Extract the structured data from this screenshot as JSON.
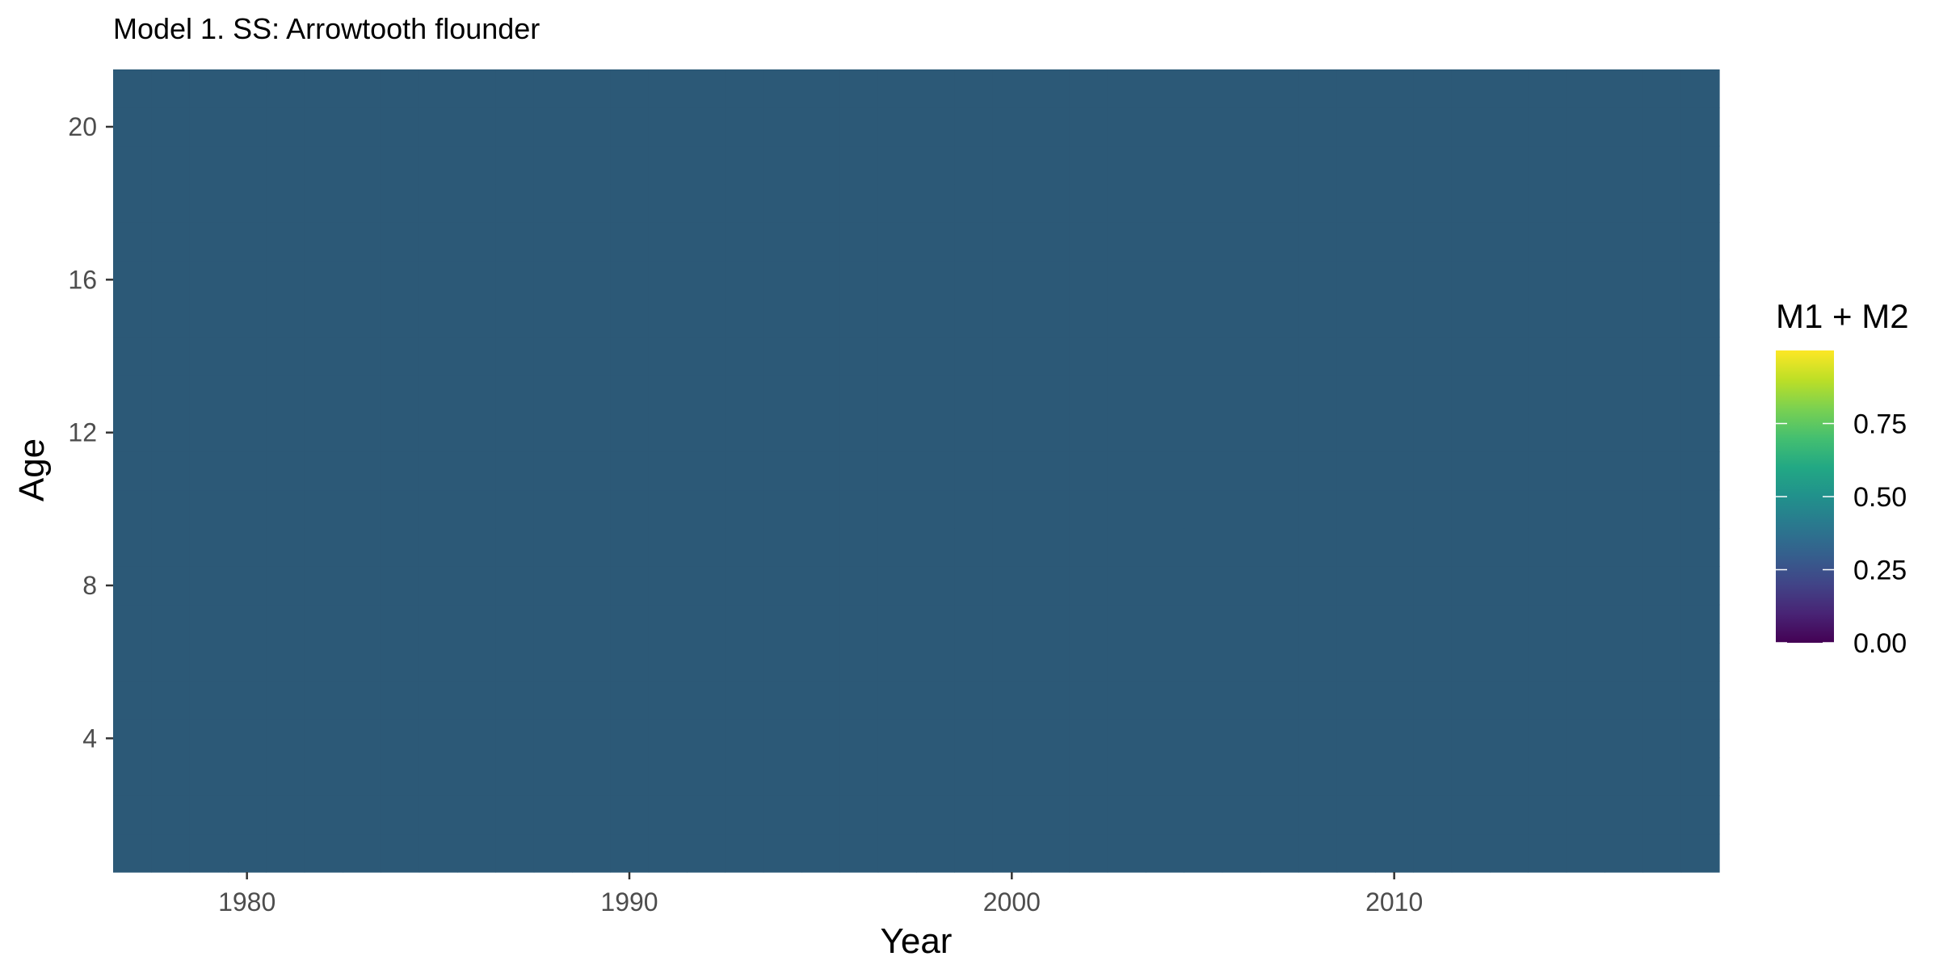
{
  "chart_data": {
    "type": "heatmap",
    "title": "Model 1. SS: Arrowtooth flounder",
    "xlabel": "Year",
    "ylabel": "Age",
    "x_range": [
      1976.5,
      2018.5
    ],
    "y_range": [
      0.5,
      21.5
    ],
    "x_ticks": [
      1980,
      1990,
      2000,
      2010
    ],
    "y_ticks": [
      4,
      8,
      12,
      16,
      20
    ],
    "years": [
      1977,
      2018
    ],
    "ages": [
      1,
      21
    ],
    "value": 0.3,
    "cell_color": "#2c5977",
    "legend": {
      "title": "M1 + M2",
      "limits": [
        0,
        1
      ],
      "breaks": [
        0.0,
        0.25,
        0.5,
        0.75
      ],
      "labels": [
        "0.00",
        "0.25",
        "0.50",
        "0.75"
      ],
      "colormap": "viridis",
      "position": "right"
    }
  }
}
